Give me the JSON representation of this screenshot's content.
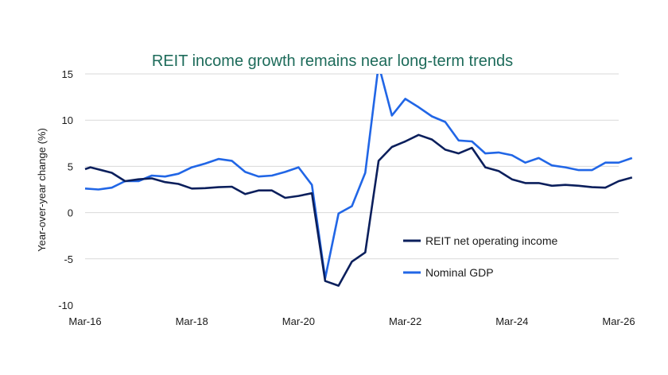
{
  "colors": {
    "title": "#1d6b5a",
    "grid": "#d9d9d9",
    "axis_text": "#1a1a1a",
    "series_noi": "#0b1f5c",
    "series_gdp": "#2166e6"
  },
  "chart_data": {
    "type": "line",
    "title": "REIT income growth remains near long-term trends",
    "xlabel": "",
    "ylabel": "Year-over-year change (%)",
    "x_ticks": [
      "Mar-16",
      "Mar-18",
      "Mar-20",
      "Mar-22",
      "Mar-24",
      "Mar-26"
    ],
    "y_ticks": [
      15,
      10,
      5,
      0,
      -5,
      -10
    ],
    "ylim": [
      -10,
      15
    ],
    "xlim": [
      2016.0,
      2026.0
    ],
    "grid": "horizontal",
    "legend": "inside-right",
    "series": [
      {
        "name": "REIT net operating income",
        "color_key": "series_noi",
        "points": [
          [
            2016.0,
            4.7
          ],
          [
            2016.1,
            4.9
          ],
          [
            2016.5,
            4.3
          ],
          [
            2016.75,
            3.4
          ],
          [
            2017.0,
            3.6
          ],
          [
            2017.25,
            3.7
          ],
          [
            2017.5,
            3.3
          ],
          [
            2017.75,
            3.1
          ],
          [
            2018.0,
            2.6
          ],
          [
            2018.25,
            2.65
          ],
          [
            2018.5,
            2.75
          ],
          [
            2018.75,
            2.8
          ],
          [
            2019.0,
            2.0
          ],
          [
            2019.25,
            2.4
          ],
          [
            2019.5,
            2.4
          ],
          [
            2019.75,
            1.6
          ],
          [
            2020.0,
            1.8
          ],
          [
            2020.25,
            2.1
          ],
          [
            2020.5,
            -7.4
          ],
          [
            2020.75,
            -7.9
          ],
          [
            2021.0,
            -5.3
          ],
          [
            2021.25,
            -4.3
          ],
          [
            2021.5,
            5.6
          ],
          [
            2021.75,
            7.1
          ],
          [
            2022.0,
            7.7
          ],
          [
            2022.25,
            8.4
          ],
          [
            2022.5,
            7.9
          ],
          [
            2022.75,
            6.8
          ],
          [
            2023.0,
            6.4
          ],
          [
            2023.25,
            7.0
          ],
          [
            2023.5,
            4.9
          ],
          [
            2023.75,
            4.5
          ],
          [
            2024.0,
            3.6
          ],
          [
            2024.25,
            3.2
          ],
          [
            2024.5,
            3.2
          ],
          [
            2024.75,
            2.9
          ],
          [
            2025.0,
            3.0
          ],
          [
            2025.25,
            2.9
          ],
          [
            2025.5,
            2.75
          ],
          [
            2025.75,
            2.7
          ],
          [
            2026.0,
            3.4
          ],
          [
            2026.25,
            3.8
          ]
        ]
      },
      {
        "name": "Nominal GDP",
        "color_key": "series_gdp",
        "points": [
          [
            2016.0,
            2.6
          ],
          [
            2016.25,
            2.5
          ],
          [
            2016.5,
            2.7
          ],
          [
            2016.75,
            3.4
          ],
          [
            2017.0,
            3.4
          ],
          [
            2017.25,
            4.0
          ],
          [
            2017.5,
            3.9
          ],
          [
            2017.75,
            4.2
          ],
          [
            2018.0,
            4.9
          ],
          [
            2018.25,
            5.3
          ],
          [
            2018.5,
            5.8
          ],
          [
            2018.75,
            5.6
          ],
          [
            2019.0,
            4.4
          ],
          [
            2019.25,
            3.9
          ],
          [
            2019.5,
            4.0
          ],
          [
            2019.75,
            4.4
          ],
          [
            2020.0,
            4.9
          ],
          [
            2020.25,
            3.0
          ],
          [
            2020.5,
            -7.1
          ],
          [
            2020.75,
            -0.1
          ],
          [
            2021.0,
            0.7
          ],
          [
            2021.25,
            4.3
          ],
          [
            2021.5,
            16.0
          ],
          [
            2021.75,
            10.5
          ],
          [
            2022.0,
            12.3
          ],
          [
            2022.25,
            11.4
          ],
          [
            2022.5,
            10.4
          ],
          [
            2022.75,
            9.8
          ],
          [
            2023.0,
            7.8
          ],
          [
            2023.25,
            7.7
          ],
          [
            2023.5,
            6.4
          ],
          [
            2023.75,
            6.5
          ],
          [
            2024.0,
            6.2
          ],
          [
            2024.25,
            5.4
          ],
          [
            2024.5,
            5.9
          ],
          [
            2024.75,
            5.1
          ],
          [
            2025.0,
            4.9
          ],
          [
            2025.25,
            4.6
          ],
          [
            2025.5,
            4.6
          ],
          [
            2025.75,
            5.4
          ],
          [
            2026.0,
            5.4
          ],
          [
            2026.25,
            5.9
          ]
        ]
      }
    ]
  }
}
